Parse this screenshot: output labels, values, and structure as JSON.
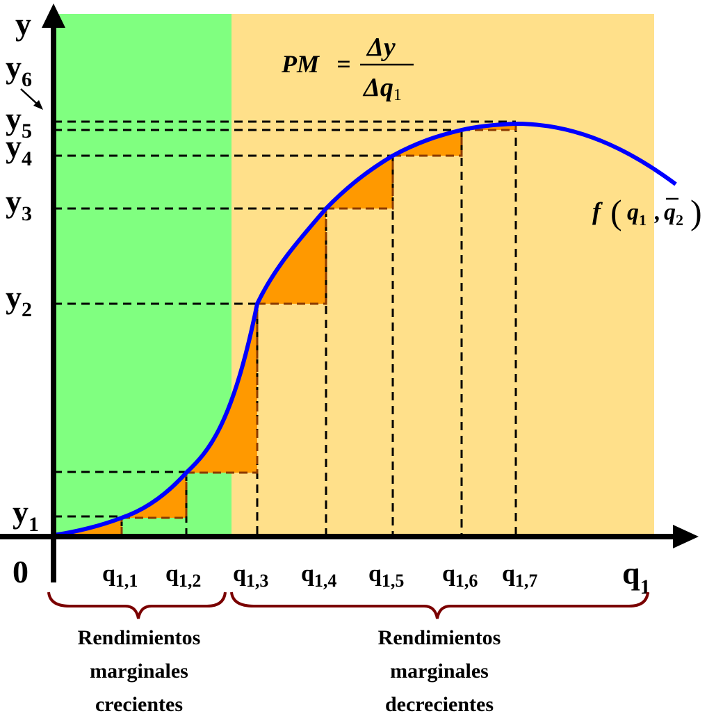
{
  "colors": {
    "increasing_region": "#80ff80",
    "decreasing_region": "#ffe08a",
    "curve": "#0000ff",
    "step_fill": "#ff9900",
    "step_stroke": "#8b3a00",
    "brace": "#7a0000",
    "axis": "#000000"
  },
  "axes": {
    "y_label": "y",
    "x_label": "q",
    "x_label_sub": "1",
    "origin": "0"
  },
  "y_ticks": [
    {
      "base": "y",
      "sub": "1"
    },
    {
      "base": "y",
      "sub": "2"
    },
    {
      "base": "y",
      "sub": "3"
    },
    {
      "base": "y",
      "sub": "4"
    },
    {
      "base": "y",
      "sub": "5"
    },
    {
      "base": "y",
      "sub": "6"
    }
  ],
  "x_ticks": [
    {
      "base": "q",
      "sub": "1,1"
    },
    {
      "base": "q",
      "sub": "1,2"
    },
    {
      "base": "q",
      "sub": "1,3"
    },
    {
      "base": "q",
      "sub": "1,4"
    },
    {
      "base": "q",
      "sub": "1,5"
    },
    {
      "base": "q",
      "sub": "1,6"
    },
    {
      "base": "q",
      "sub": "1,7"
    }
  ],
  "formula": {
    "lhs": "PM",
    "equals": "=",
    "numerator": "Δy",
    "denominator": "Δq",
    "denominator_sub": "1"
  },
  "function_label": {
    "f": "f",
    "open": "(",
    "var1": "q",
    "var1_sub": "1",
    "comma": ",",
    "var2": "q",
    "var2_sub": "2",
    "close": ")"
  },
  "regions": {
    "increasing": {
      "line1": "Rendimientos",
      "line2": "marginales",
      "line3": "crecientes"
    },
    "decreasing": {
      "line1": "Rendimientos",
      "line2": "marginales",
      "line3": "decrecientes"
    }
  }
}
